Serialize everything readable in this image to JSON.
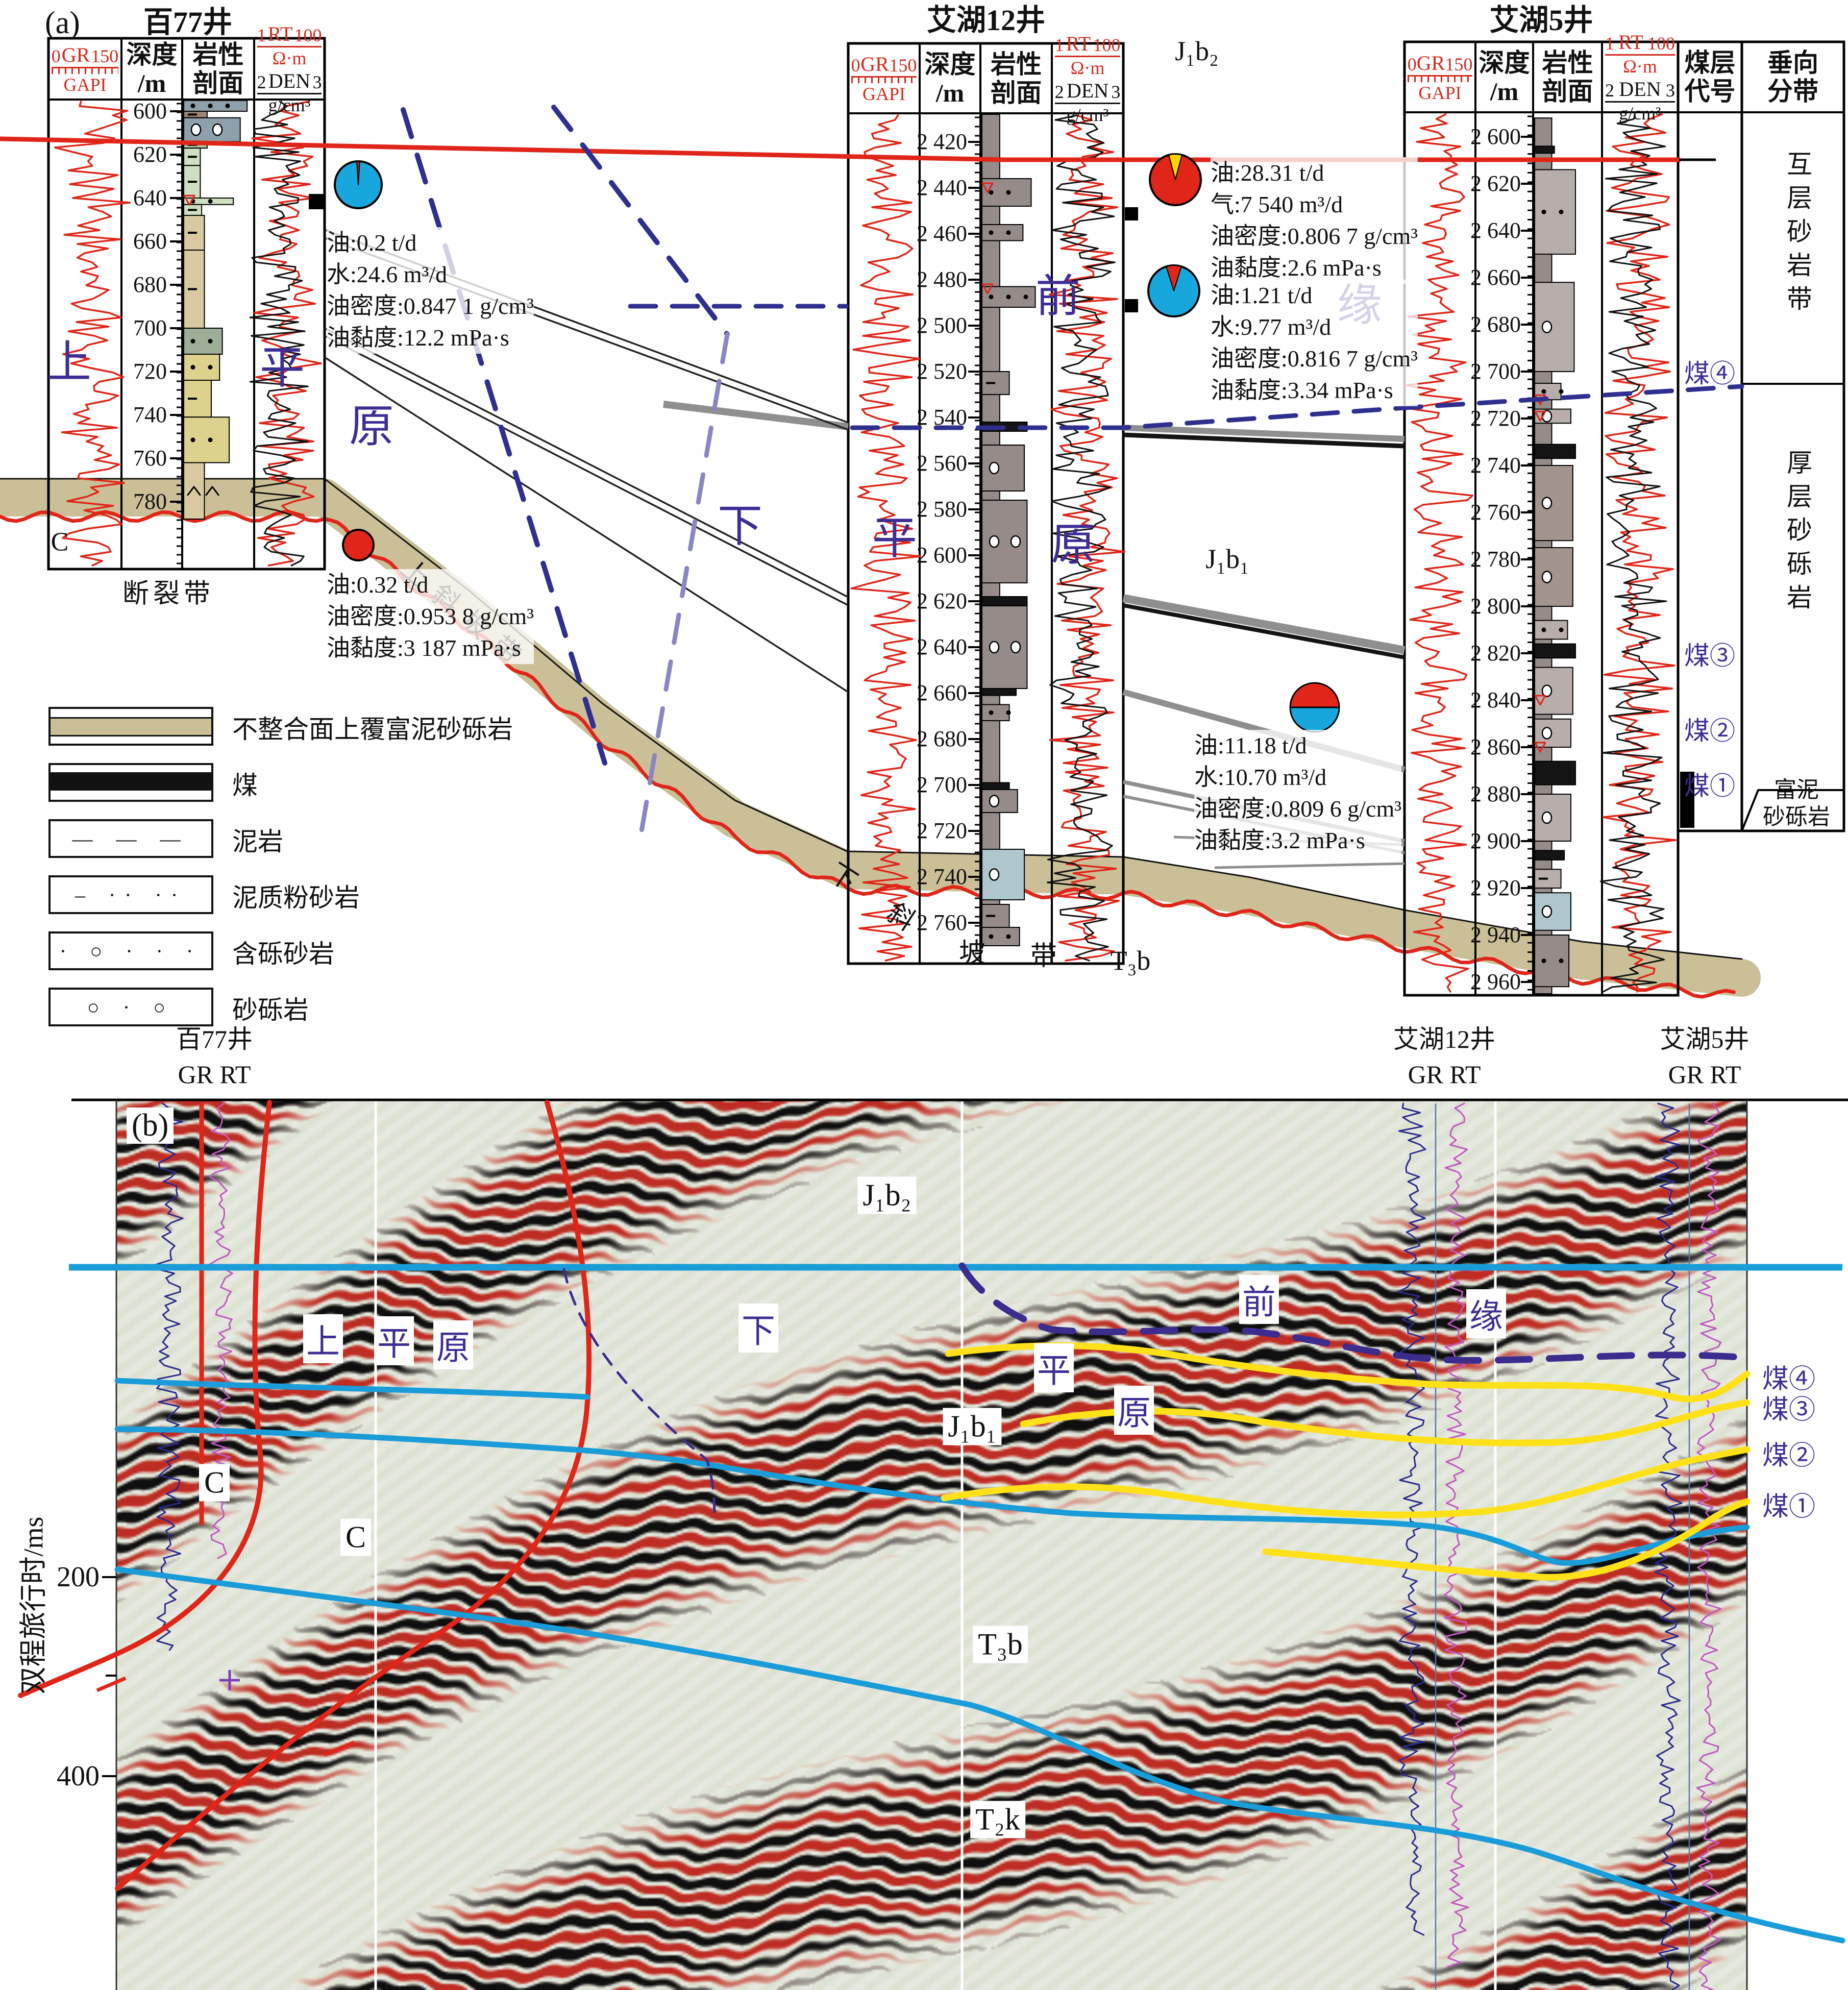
{
  "figure": {
    "panel_a": "(a)",
    "panel_b": "(b)"
  },
  "colors": {
    "red": "#e02519",
    "cyan": "#1a9cd8",
    "yellow": "#ffe11a",
    "purple": "#3b2f96",
    "tan": "#cbbf97",
    "water_blue": "#18a7dc",
    "magenta": "#c058c0",
    "navy": "#2b2b8c"
  },
  "header": {
    "gr": "GR",
    "gr_min": "0",
    "gr_max": "150",
    "gr_unit": "GAPI",
    "depth1": "深度",
    "depth2": "/m",
    "lith1": "岩性",
    "lith2": "剖面",
    "rt": "RT",
    "rt_min": "1",
    "rt_max": "100",
    "rt_unit": "Ω·m",
    "den": "DEN",
    "den_min": "2",
    "den_max": "3",
    "den_unit": "g/cm³"
  },
  "wa": {
    "title": "百77井",
    "depths": [
      "600",
      "620",
      "640",
      "660",
      "680",
      "700",
      "720",
      "740",
      "760",
      "780"
    ]
  },
  "wb": {
    "title": "艾湖12井",
    "depths": [
      "2 420",
      "2 440",
      "2 460",
      "2 480",
      "2 500",
      "2 520",
      "2 540",
      "2 560",
      "2 580",
      "2 600",
      "2 620",
      "2 640",
      "2 660",
      "2 680",
      "2 700",
      "2 720",
      "2 740",
      "2 760"
    ]
  },
  "wc": {
    "title": "艾湖5井",
    "depths": [
      "2 600",
      "2 620",
      "2 640",
      "2 660",
      "2 680",
      "2 700",
      "2 720",
      "2 740",
      "2 760",
      "2 780",
      "2 800",
      "2 820",
      "2 840",
      "2 860",
      "2 880",
      "2 900",
      "2 920",
      "2 940",
      "2 960"
    ],
    "coal1": "煤层",
    "coal2": "代号",
    "zone1": "垂向",
    "zone2": "分带"
  },
  "zones": {
    "upper": "互层砂岩带",
    "middle": "厚层砂砾岩",
    "low1": "富泥",
    "low2": "砂砾岩"
  },
  "coal": {
    "c4": "煤④",
    "c3": "煤③",
    "c2": "煤②",
    "c1": "煤①"
  },
  "ann": {
    "a1": {
      "l1": "油:0.2 t/d",
      "l2": "水:24.6 m³/d",
      "l3": "油密度:0.847 1 g/cm³",
      "l4": "油黏度:12.2 mPa·s"
    },
    "a2": {
      "l1": "油:0.32 t/d",
      "l2": "油密度:0.953 8 g/cm³",
      "l3": "油黏度:3 187 mPa·s"
    },
    "b1": {
      "l1": "油:28.31 t/d",
      "l2": "气:7 540 m³/d",
      "l3": "油密度:0.806 7 g/cm³",
      "l4": "油黏度:2.6 mPa·s"
    },
    "b2": {
      "l1": "油:1.21 t/d",
      "l2": "水:9.77 m³/d",
      "l3": "油密度:0.816 7 g/cm³",
      "l4": "油黏度:3.34 mPa·s"
    },
    "c1": {
      "l1": "油:11.18 t/d",
      "l2": "水:10.70 m³/d",
      "l3": "油密度:0.809 6 g/cm³",
      "l4": "油黏度:3.2 mPa·s"
    }
  },
  "strat": {
    "j1b2": "J₁b₂",
    "j1b1": "J₁b₁",
    "t3b": "T₃b",
    "t2k": "T₂k"
  },
  "chars": {
    "shang": "上",
    "ping": "平",
    "yuan": "原",
    "xia": "下",
    "qian": "前",
    "yuan2": "缘",
    "xie": "斜",
    "po": "坡",
    "dai": "带",
    "c": "C"
  },
  "labels": {
    "fault_zone": "断裂带",
    "upper_slope": "上斜坡带"
  },
  "legend": [
    "不整合面上覆富泥砂砾岩",
    "煤",
    "泥岩",
    "泥质粉砂岩",
    "含砾砂岩",
    "砂砾岩"
  ],
  "pb": {
    "axis": "双程旅行时/ms",
    "t200": "200",
    "t400": "400",
    "logs": "GR RT",
    "w1": "百77井",
    "w2": "艾湖12井",
    "w3": "艾湖5井"
  }
}
